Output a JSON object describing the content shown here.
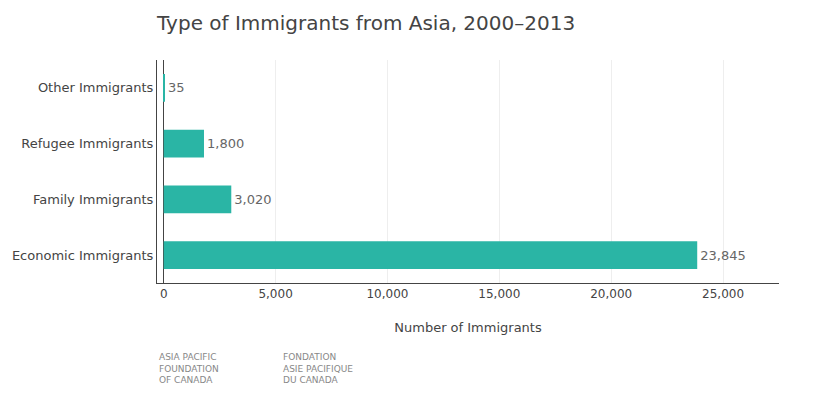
{
  "chart_data": {
    "type": "bar",
    "orientation": "horizontal",
    "title": "Type of Immigrants from Asia, 2000–2013",
    "categories": [
      "Economic Immigrants",
      "Family Immigrants",
      "Refugee Immigrants",
      "Other Immigrants"
    ],
    "values": [
      23845,
      3020,
      1800,
      35
    ],
    "value_labels": [
      "23,845",
      "3,020",
      "1,800",
      "35"
    ],
    "data_labels": true,
    "color": "#2ab5a5",
    "xlabel": "Number of Immigrants",
    "xlim": [
      -300,
      27500
    ],
    "xticks": [
      0,
      {
        "value": 5000,
        "label": "5,000"
      },
      {
        "value": 10000,
        "label": "10,000"
      },
      {
        "value": 15000,
        "label": "15,000"
      },
      {
        "value": 20000,
        "label": "20,000"
      },
      {
        "value": 25000,
        "label": "25,000"
      }
    ],
    "grid": true,
    "annotations": [
      "ASIA PACIFIC\nFOUNDATION\nOF CANADA",
      "FONDATION\nASIE PACIFIQUE\nDU CANADA"
    ]
  }
}
